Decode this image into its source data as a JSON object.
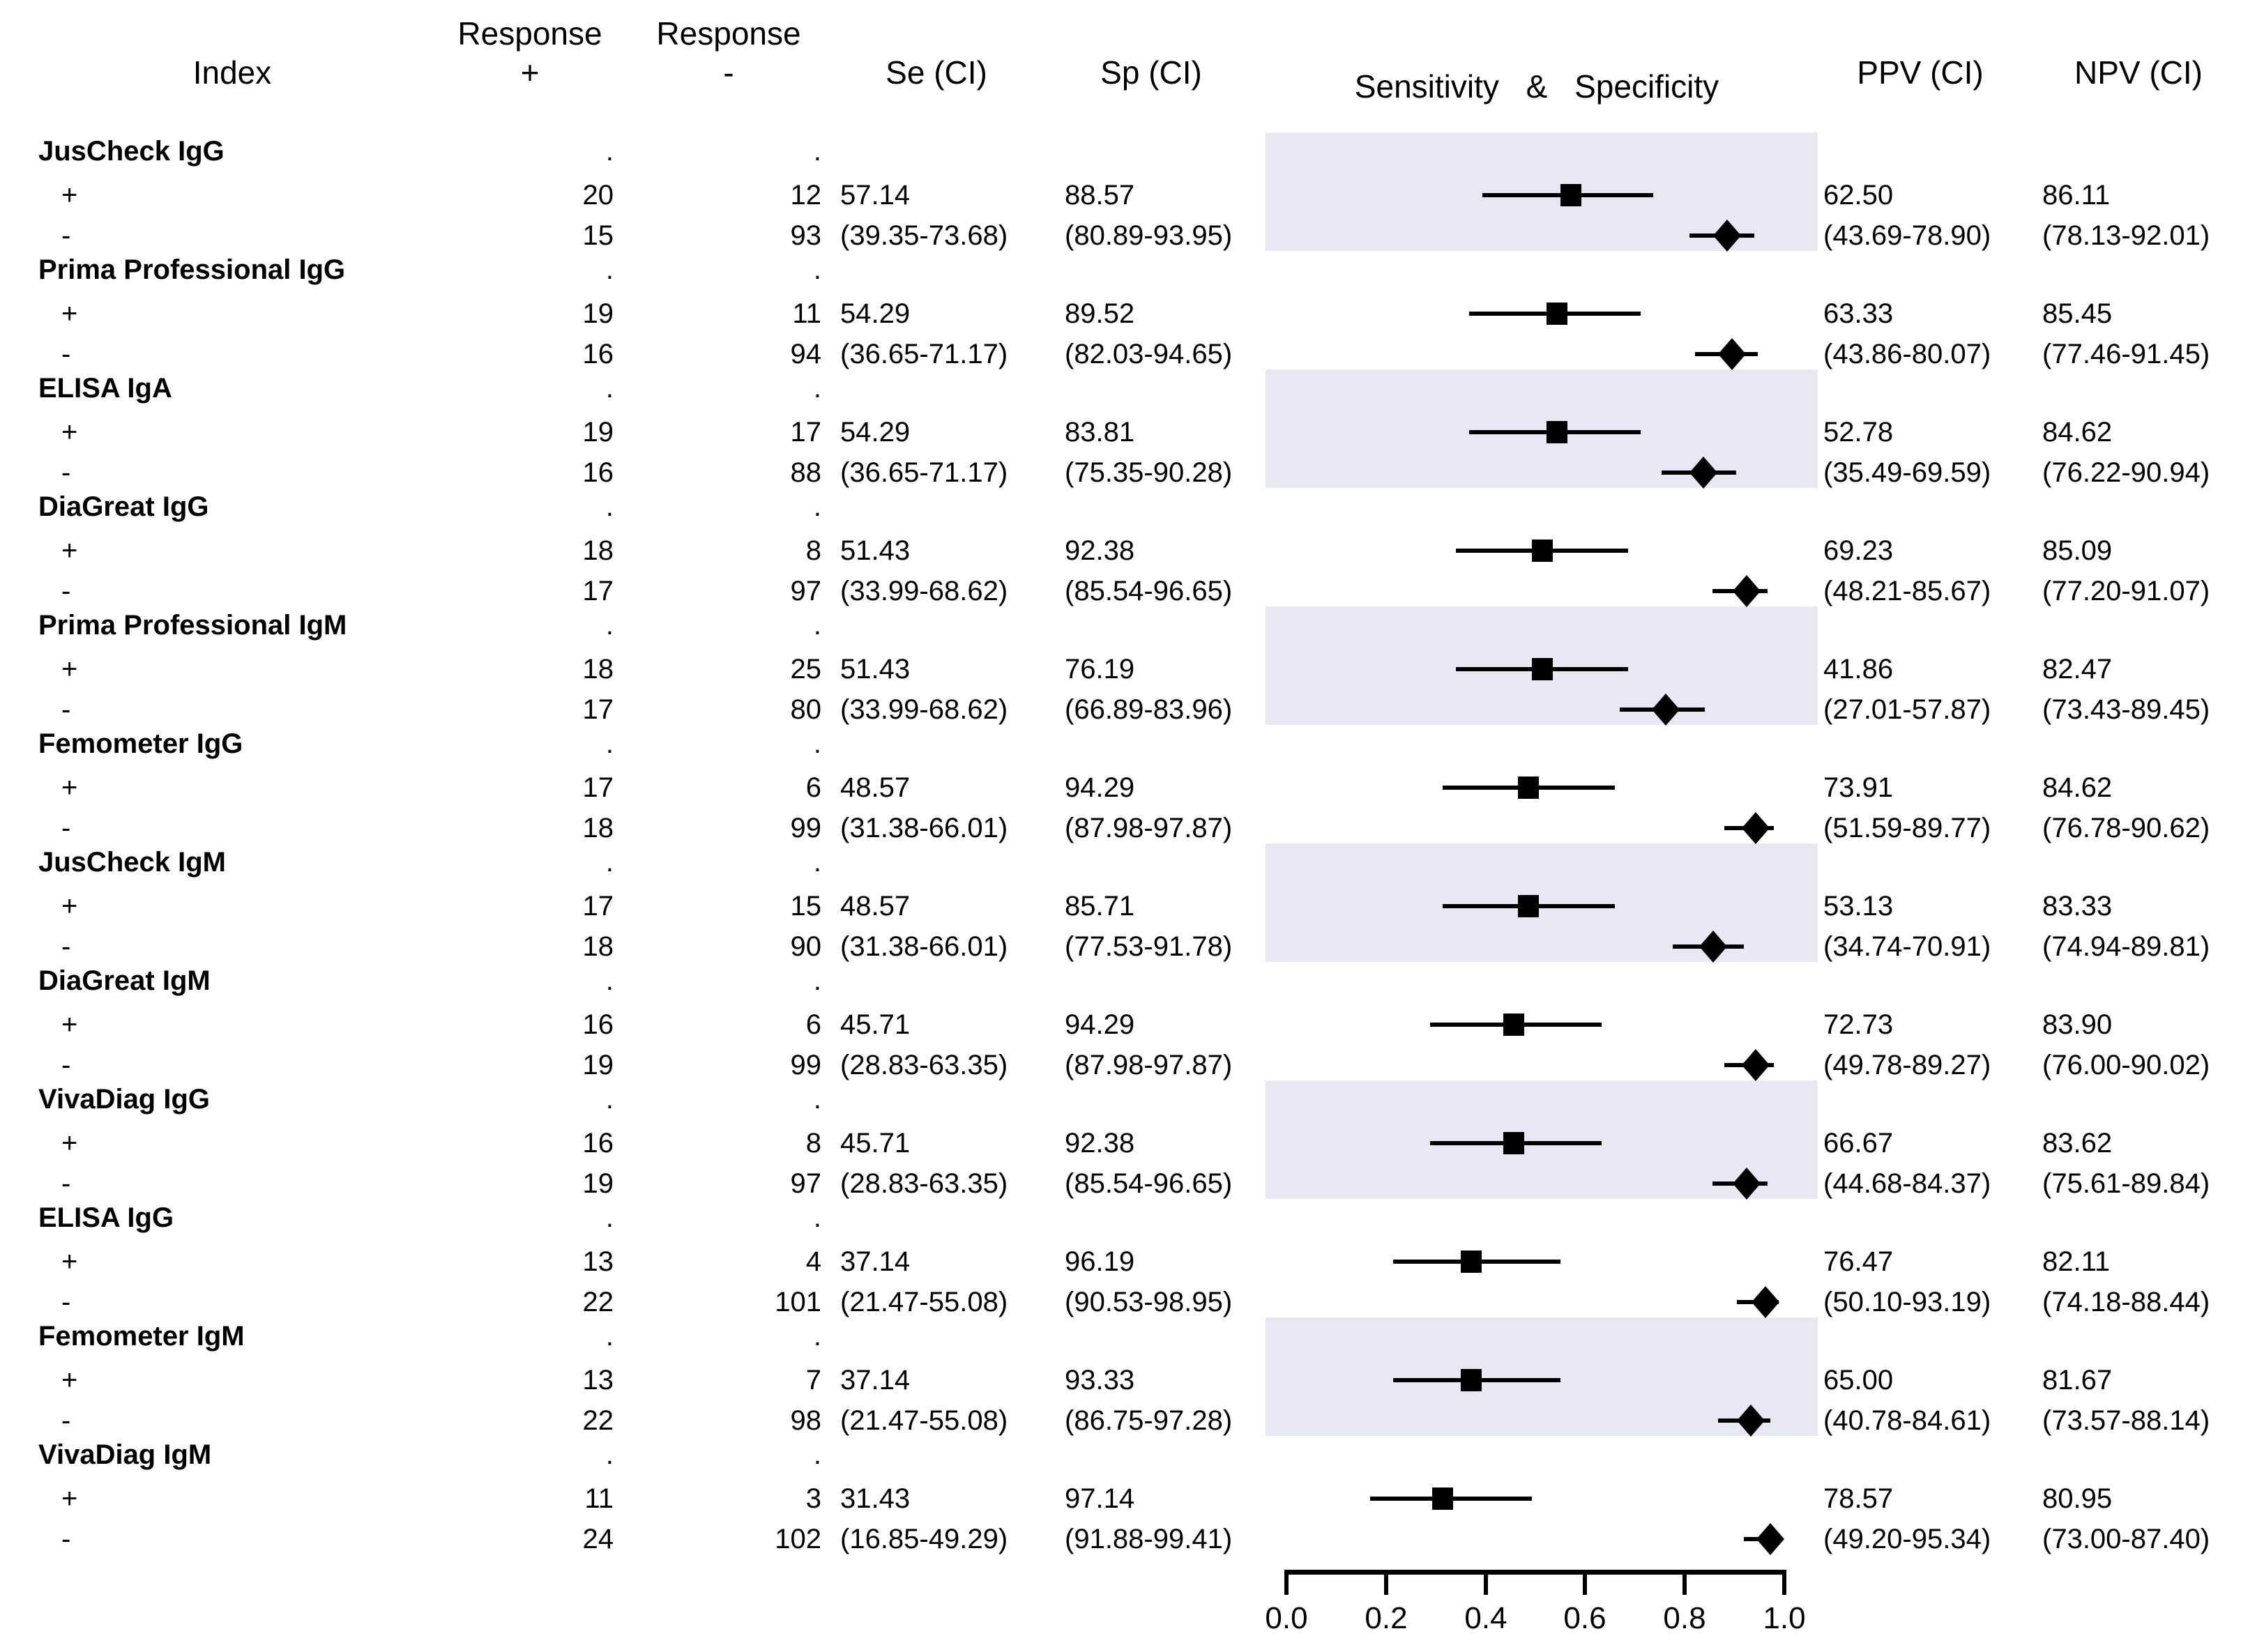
{
  "header": {
    "col_index": "Index",
    "col_response_plus_line1": "Response",
    "col_response_plus_line2": "+",
    "col_response_minus_line1": "Response",
    "col_response_minus_line2": "-",
    "col_se": "Se (CI)",
    "col_sp": "Sp (CI)",
    "col_plot": "Sensitivity & Specificity",
    "col_ppv": "PPV (CI)",
    "col_npv": "NPV (CI)"
  },
  "table": {
    "missing_cell": ".",
    "row_label_plus": "+",
    "row_label_minus": "-"
  },
  "colors": {
    "band": "#e8e7f4",
    "marker": "#000000",
    "text": "#000000",
    "background": "#ffffff"
  },
  "tests": [
    {
      "name": "JusCheck IgG",
      "shaded": true,
      "response_pos_plus": "20",
      "response_neg_plus": "12",
      "se": "57.14",
      "sp": "88.57",
      "response_pos_minus": "15",
      "response_neg_minus": "93",
      "se_ci": "(39.35-73.68)",
      "sp_ci": "(80.89-93.95)",
      "ppv": "62.50",
      "ppv_ci": "(43.69-78.90)",
      "npv": "86.11",
      "npv_ci": "(78.13-92.01)"
    },
    {
      "name": "Prima Professional IgG",
      "shaded": false,
      "response_pos_plus": "19",
      "response_neg_plus": "11",
      "se": "54.29",
      "sp": "89.52",
      "response_pos_minus": "16",
      "response_neg_minus": "94",
      "se_ci": "(36.65-71.17)",
      "sp_ci": "(82.03-94.65)",
      "ppv": "63.33",
      "ppv_ci": "(43.86-80.07)",
      "npv": "85.45",
      "npv_ci": "(77.46-91.45)"
    },
    {
      "name": "ELISA IgA",
      "shaded": true,
      "response_pos_plus": "19",
      "response_neg_plus": "17",
      "se": "54.29",
      "sp": "83.81",
      "response_pos_minus": "16",
      "response_neg_minus": "88",
      "se_ci": "(36.65-71.17)",
      "sp_ci": "(75.35-90.28)",
      "ppv": "52.78",
      "ppv_ci": "(35.49-69.59)",
      "npv": "84.62",
      "npv_ci": "(76.22-90.94)"
    },
    {
      "name": "DiaGreat IgG",
      "shaded": false,
      "response_pos_plus": "18",
      "response_neg_plus": "8",
      "se": "51.43",
      "sp": "92.38",
      "response_pos_minus": "17",
      "response_neg_minus": "97",
      "se_ci": "(33.99-68.62)",
      "sp_ci": "(85.54-96.65)",
      "ppv": "69.23",
      "ppv_ci": "(48.21-85.67)",
      "npv": "85.09",
      "npv_ci": "(77.20-91.07)"
    },
    {
      "name": "Prima Professional IgM",
      "shaded": true,
      "response_pos_plus": "18",
      "response_neg_plus": "25",
      "se": "51.43",
      "sp": "76.19",
      "response_pos_minus": "17",
      "response_neg_minus": "80",
      "se_ci": "(33.99-68.62)",
      "sp_ci": "(66.89-83.96)",
      "ppv": "41.86",
      "ppv_ci": "(27.01-57.87)",
      "npv": "82.47",
      "npv_ci": "(73.43-89.45)"
    },
    {
      "name": "Femometer IgG",
      "shaded": false,
      "response_pos_plus": "17",
      "response_neg_plus": "6",
      "se": "48.57",
      "sp": "94.29",
      "response_pos_minus": "18",
      "response_neg_minus": "99",
      "se_ci": "(31.38-66.01)",
      "sp_ci": "(87.98-97.87)",
      "ppv": "73.91",
      "ppv_ci": "(51.59-89.77)",
      "npv": "84.62",
      "npv_ci": "(76.78-90.62)"
    },
    {
      "name": "JusCheck IgM",
      "shaded": true,
      "response_pos_plus": "17",
      "response_neg_plus": "15",
      "se": "48.57",
      "sp": "85.71",
      "response_pos_minus": "18",
      "response_neg_minus": "90",
      "se_ci": "(31.38-66.01)",
      "sp_ci": "(77.53-91.78)",
      "ppv": "53.13",
      "ppv_ci": "(34.74-70.91)",
      "npv": "83.33",
      "npv_ci": "(74.94-89.81)"
    },
    {
      "name": "DiaGreat IgM",
      "shaded": false,
      "response_pos_plus": "16",
      "response_neg_plus": "6",
      "se": "45.71",
      "sp": "94.29",
      "response_pos_minus": "19",
      "response_neg_minus": "99",
      "se_ci": "(28.83-63.35)",
      "sp_ci": "(87.98-97.87)",
      "ppv": "72.73",
      "ppv_ci": "(49.78-89.27)",
      "npv": "83.90",
      "npv_ci": "(76.00-90.02)"
    },
    {
      "name": "VivaDiag IgG",
      "shaded": true,
      "response_pos_plus": "16",
      "response_neg_plus": "8",
      "se": "45.71",
      "sp": "92.38",
      "response_pos_minus": "19",
      "response_neg_minus": "97",
      "se_ci": "(28.83-63.35)",
      "sp_ci": "(85.54-96.65)",
      "ppv": "66.67",
      "ppv_ci": "(44.68-84.37)",
      "npv": "83.62",
      "npv_ci": "(75.61-89.84)"
    },
    {
      "name": "ELISA IgG",
      "shaded": false,
      "response_pos_plus": "13",
      "response_neg_plus": "4",
      "se": "37.14",
      "sp": "96.19",
      "response_pos_minus": "22",
      "response_neg_minus": "101",
      "se_ci": "(21.47-55.08)",
      "sp_ci": "(90.53-98.95)",
      "ppv": "76.47",
      "ppv_ci": "(50.10-93.19)",
      "npv": "82.11",
      "npv_ci": "(74.18-88.44)"
    },
    {
      "name": "Femometer IgM",
      "shaded": true,
      "response_pos_plus": "13",
      "response_neg_plus": "7",
      "se": "37.14",
      "sp": "93.33",
      "response_pos_minus": "22",
      "response_neg_minus": "98",
      "se_ci": "(21.47-55.08)",
      "sp_ci": "(86.75-97.28)",
      "ppv": "65.00",
      "ppv_ci": "(40.78-84.61)",
      "npv": "81.67",
      "npv_ci": "(73.57-88.14)"
    },
    {
      "name": "VivaDiag IgM",
      "shaded": false,
      "response_pos_plus": "11",
      "response_neg_plus": "3",
      "se": "31.43",
      "sp": "97.14",
      "response_pos_minus": "24",
      "response_neg_minus": "102",
      "se_ci": "(16.85-49.29)",
      "sp_ci": "(91.88-99.41)",
      "ppv": "78.57",
      "ppv_ci": "(49.20-95.34)",
      "npv": "80.95",
      "npv_ci": "(73.00-87.40)"
    }
  ],
  "chart_data": {
    "type": "scatter",
    "variant": "forest plot of paired diagnostic sensitivity & specificity with 95% CI",
    "title": "Sensitivity & Specificity",
    "x_axis": {
      "range": [
        0,
        1
      ],
      "ticks": [
        0,
        0.2,
        0.4,
        0.6,
        0.8,
        1.0
      ],
      "tick_labels": [
        "0.0",
        "0.2",
        "0.4",
        "0.6",
        "0.8",
        "1.0"
      ]
    },
    "marker_legend": {
      "sensitivity": "filled square with horizontal CI whisker",
      "specificity": "filled diamond with horizontal CI whisker"
    },
    "rows": [
      {
        "name": "JusCheck IgG",
        "se": 0.5714,
        "se_ci": [
          0.3935,
          0.7368
        ],
        "sp": 0.8857,
        "sp_ci": [
          0.8089,
          0.9395
        ]
      },
      {
        "name": "Prima Professional IgG",
        "se": 0.5429,
        "se_ci": [
          0.3665,
          0.7117
        ],
        "sp": 0.8952,
        "sp_ci": [
          0.8203,
          0.9465
        ]
      },
      {
        "name": "ELISA IgA",
        "se": 0.5429,
        "se_ci": [
          0.3665,
          0.7117
        ],
        "sp": 0.8381,
        "sp_ci": [
          0.7535,
          0.9028
        ]
      },
      {
        "name": "DiaGreat IgG",
        "se": 0.5143,
        "se_ci": [
          0.3399,
          0.6862
        ],
        "sp": 0.9238,
        "sp_ci": [
          0.8554,
          0.9665
        ]
      },
      {
        "name": "Prima Professional IgM",
        "se": 0.5143,
        "se_ci": [
          0.3399,
          0.6862
        ],
        "sp": 0.7619,
        "sp_ci": [
          0.6689,
          0.8396
        ]
      },
      {
        "name": "Femometer IgG",
        "se": 0.4857,
        "se_ci": [
          0.3138,
          0.6601
        ],
        "sp": 0.9429,
        "sp_ci": [
          0.8798,
          0.9787
        ]
      },
      {
        "name": "JusCheck IgM",
        "se": 0.4857,
        "se_ci": [
          0.3138,
          0.6601
        ],
        "sp": 0.8571,
        "sp_ci": [
          0.7753,
          0.9178
        ]
      },
      {
        "name": "DiaGreat IgM",
        "se": 0.4571,
        "se_ci": [
          0.2883,
          0.6335
        ],
        "sp": 0.9429,
        "sp_ci": [
          0.8798,
          0.9787
        ]
      },
      {
        "name": "VivaDiag IgG",
        "se": 0.4571,
        "se_ci": [
          0.2883,
          0.6335
        ],
        "sp": 0.9238,
        "sp_ci": [
          0.8554,
          0.9665
        ]
      },
      {
        "name": "ELISA IgG",
        "se": 0.3714,
        "se_ci": [
          0.2147,
          0.5508
        ],
        "sp": 0.9619,
        "sp_ci": [
          0.9053,
          0.9895
        ]
      },
      {
        "name": "Femometer IgM",
        "se": 0.3714,
        "se_ci": [
          0.2147,
          0.5508
        ],
        "sp": 0.9333,
        "sp_ci": [
          0.8675,
          0.9728
        ]
      },
      {
        "name": "VivaDiag IgM",
        "se": 0.3143,
        "se_ci": [
          0.1685,
          0.4929
        ],
        "sp": 0.9714,
        "sp_ci": [
          0.9188,
          0.9941
        ]
      }
    ]
  }
}
